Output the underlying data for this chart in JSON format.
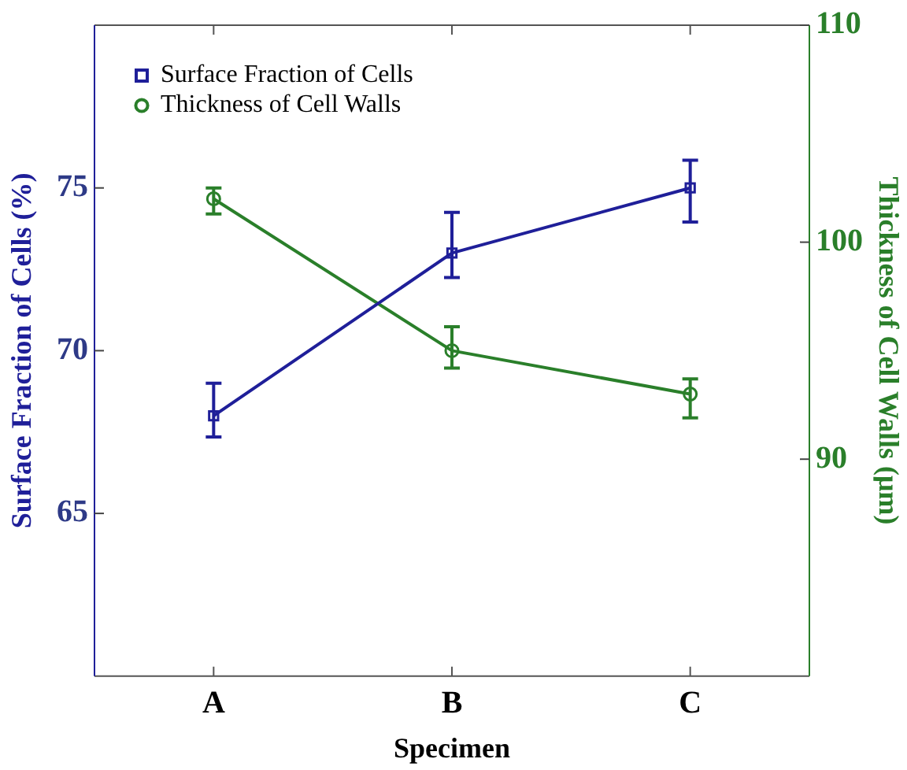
{
  "chart_data": {
    "type": "line",
    "xlabel": "Specimen",
    "ylabel": "Surface Fraction of Cells (%)",
    "y2label": "Thickness of Cell Walls (μm)",
    "categories": [
      "A",
      "B",
      "C"
    ],
    "series": [
      {
        "name": "Surface Fraction of Cells",
        "color": "#1f1f99",
        "marker": "square",
        "axis": "y",
        "values": [
          68,
          73,
          75
        ],
        "errors": [
          [
            67.35,
            69.0
          ],
          [
            72.25,
            74.25
          ],
          [
            73.95,
            75.85
          ]
        ]
      },
      {
        "name": "Thickness of Cell Walls",
        "color": "#2a7f2a",
        "marker": "circle",
        "axis": "y2",
        "values": [
          102,
          95,
          93
        ],
        "errors": [
          [
            101.3,
            102.5
          ],
          [
            94.2,
            96.1
          ],
          [
            91.9,
            93.7
          ]
        ]
      }
    ],
    "ylim": [
      60,
      80
    ],
    "yticks": [
      65,
      70,
      75
    ],
    "y2lim": [
      80,
      110
    ],
    "y2ticks": [
      90,
      100,
      110
    ],
    "grid": false,
    "legend": "top left",
    "line_style": "solid"
  }
}
